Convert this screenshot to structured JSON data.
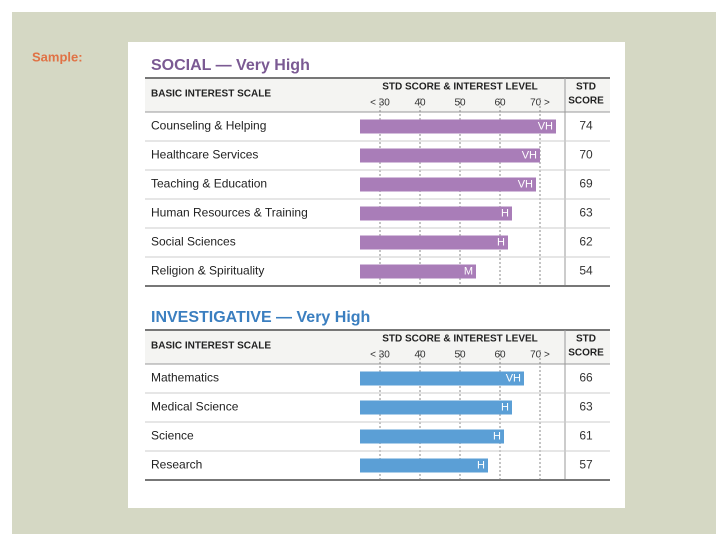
{
  "label": "Sample:",
  "chart_data": [
    {
      "type": "bar",
      "title": "SOCIAL — Very High",
      "title_color": "#7b5a93",
      "scale_header": "BASIC INTEREST SCALE",
      "axis_title": "STD SCORE & INTEREST LEVEL",
      "score_header": [
        "STD",
        "SCORE"
      ],
      "categories": [
        "Counseling & Helping",
        "Healthcare Services",
        "Teaching & Education",
        "Human Resources & Training",
        "Social Sciences",
        "Religion & Spirituality"
      ],
      "values": [
        74,
        70,
        69,
        63,
        62,
        54
      ],
      "levels": [
        "VH",
        "VH",
        "VH",
        "H",
        "H",
        "M"
      ],
      "color": "#a97db8",
      "xlim": [
        25,
        75
      ],
      "xticks": [
        {
          "value": 30,
          "label": "< 30"
        },
        40,
        50,
        60,
        {
          "value": 70,
          "label": "70 >"
        }
      ],
      "grid": true
    },
    {
      "type": "bar",
      "title": "INVESTIGATIVE — Very High",
      "title_color": "#3b7fc0",
      "scale_header": "BASIC INTEREST SCALE",
      "axis_title": "STD SCORE & INTEREST LEVEL",
      "score_header": [
        "STD",
        "SCORE"
      ],
      "categories": [
        "Mathematics",
        "Medical Science",
        "Science",
        "Research"
      ],
      "values": [
        66,
        63,
        61,
        57
      ],
      "levels": [
        "VH",
        "H",
        "H",
        "H"
      ],
      "color": "#5b9fd6",
      "xlim": [
        25,
        75
      ],
      "xticks": [
        {
          "value": 30,
          "label": "< 30"
        },
        40,
        50,
        60,
        {
          "value": 70,
          "label": "70 >"
        }
      ],
      "grid": true
    }
  ]
}
